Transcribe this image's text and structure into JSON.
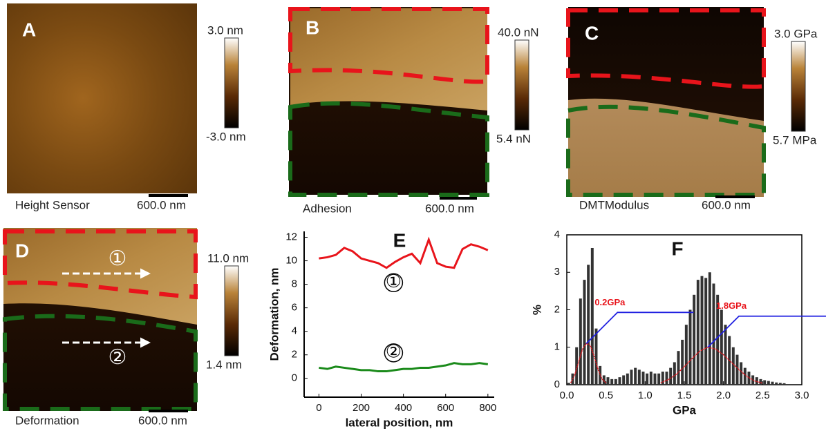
{
  "panels": [
    {
      "label": "A",
      "caption": "Height Sensor",
      "scale_bar": "600.0 nm",
      "colorbar_max": "3.0 nm",
      "colorbar_min": "-3.0 nm"
    },
    {
      "label": "B",
      "caption": "Adhesion",
      "scale_bar": "600.0 nm",
      "colorbar_max": "40.0 nN",
      "colorbar_min": "5.4 nN"
    },
    {
      "label": "C",
      "caption": "DMTModulus",
      "scale_bar": "600.0 nm",
      "colorbar_max": "3.0 GPa",
      "colorbar_min": "5.7 MPa"
    },
    {
      "label": "D",
      "caption": "Deformation",
      "scale_bar": "600.0 nm",
      "colorbar_max": "11.0 nm",
      "colorbar_min": "1.4 nm",
      "markers": [
        "①",
        "②"
      ]
    }
  ],
  "chart_data": [
    {
      "type": "line",
      "title": "E",
      "x_label": "lateral position, nm",
      "y_label": "Deformation, nm",
      "x": [
        0,
        40,
        80,
        120,
        160,
        200,
        240,
        280,
        320,
        360,
        400,
        440,
        480,
        520,
        560,
        600,
        640,
        680,
        720,
        760,
        800
      ],
      "series": [
        {
          "name": "①",
          "color": "#e8141b",
          "values": [
            10.2,
            10.3,
            10.5,
            11.1,
            10.8,
            10.2,
            10.0,
            9.8,
            9.4,
            9.9,
            10.3,
            10.6,
            9.8,
            11.8,
            9.8,
            9.5,
            9.4,
            11.0,
            11.4,
            11.2,
            10.9
          ]
        },
        {
          "name": "②",
          "color": "#1a8a1a",
          "values": [
            0.9,
            0.8,
            1.0,
            0.9,
            0.8,
            0.7,
            0.7,
            0.6,
            0.6,
            0.7,
            0.8,
            0.8,
            0.9,
            0.9,
            1.0,
            1.1,
            1.3,
            1.2,
            1.2,
            1.3,
            1.2
          ]
        }
      ],
      "xlim": [
        -70,
        830
      ],
      "ylim": [
        -1.6,
        12.5
      ],
      "xticks": [
        0,
        200,
        400,
        600,
        800
      ],
      "yticks": [
        0,
        2,
        4,
        6,
        8,
        10,
        12
      ]
    },
    {
      "type": "histogram",
      "title": "F",
      "x_label": "GPa",
      "y_label": "%",
      "color": "#333333",
      "bins": [
        0,
        0.05,
        0.1,
        0.15,
        0.2,
        0.25,
        0.3,
        0.35,
        0.4,
        0.45,
        0.5,
        0.55,
        0.6,
        0.65,
        0.7,
        0.75,
        0.8,
        0.85,
        0.9,
        0.95,
        1,
        1.05,
        1.1,
        1.15,
        1.2,
        1.25,
        1.3,
        1.35,
        1.4,
        1.45,
        1.5,
        1.55,
        1.6,
        1.65,
        1.7,
        1.75,
        1.8,
        1.85,
        1.9,
        1.95,
        2,
        2.05,
        2.1,
        2.15,
        2.2,
        2.25,
        2.3,
        2.35,
        2.4,
        2.45,
        2.5,
        2.55,
        2.6,
        2.65,
        2.7,
        2.75,
        2.8
      ],
      "counts": [
        0.05,
        0.3,
        1.0,
        2.3,
        2.8,
        3.2,
        3.65,
        1.5,
        0.5,
        0.25,
        0.2,
        0.15,
        0.15,
        0.2,
        0.25,
        0.3,
        0.4,
        0.45,
        0.4,
        0.35,
        0.3,
        0.35,
        0.3,
        0.3,
        0.35,
        0.35,
        0.45,
        0.6,
        0.9,
        1.2,
        1.6,
        2.0,
        2.4,
        2.8,
        2.9,
        2.85,
        3.0,
        2.7,
        2.4,
        2.0,
        1.6,
        1.3,
        1.0,
        0.8,
        0.6,
        0.45,
        0.35,
        0.25,
        0.2,
        0.15,
        0.12,
        0.1,
        0.08,
        0.06,
        0.05,
        0.04
      ],
      "fits": [
        {
          "color": "#e8141b",
          "x": [
            0.05,
            0.1,
            0.15,
            0.2,
            0.25,
            0.3,
            0.35,
            0.4,
            0.45,
            0.5
          ],
          "values": [
            0.05,
            0.25,
            0.6,
            0.95,
            1.1,
            1.05,
            0.75,
            0.4,
            0.15,
            0.05
          ]
        },
        {
          "color": "#e8141b",
          "x": [
            1.2,
            1.3,
            1.4,
            1.5,
            1.6,
            1.7,
            1.8,
            1.9,
            2.0,
            2.1,
            2.2,
            2.3,
            2.4,
            2.5
          ],
          "values": [
            0.05,
            0.14,
            0.28,
            0.48,
            0.7,
            0.9,
            1.0,
            0.95,
            0.8,
            0.6,
            0.4,
            0.22,
            0.1,
            0.04
          ]
        }
      ],
      "annotations": [
        "0.2GPa",
        "1.8GPa"
      ],
      "annotation_color": "#e8141b",
      "leader_color": "#1f1fe0",
      "xlim": [
        0,
        3
      ],
      "ylim": [
        0,
        4
      ],
      "xticks": [
        {
          "value": 0,
          "label": "0.0"
        },
        0.5,
        {
          "value": 1,
          "label": "1.0"
        },
        1.5,
        {
          "value": 2,
          "label": "2.0"
        },
        2.5,
        {
          "value": 3,
          "label": "3.0"
        }
      ],
      "yticks": [
        0,
        1,
        2,
        3,
        4
      ]
    }
  ]
}
